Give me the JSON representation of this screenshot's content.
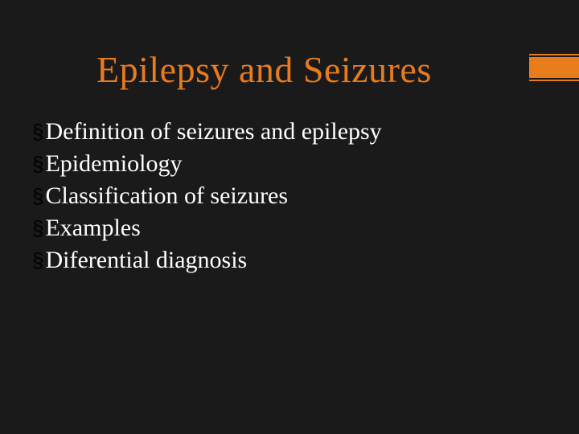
{
  "slide": {
    "title": "Epilepsy and Seizures",
    "title_color": "#e87b1c",
    "title_fontsize": 46,
    "background_color": "#1a1a1a",
    "accent_bar": {
      "color": "#e87b1c",
      "width": 62,
      "height": 34
    },
    "bullets": {
      "marker": "§",
      "marker_color": "#000000",
      "text_color": "#ffffff",
      "text_fontsize": 30,
      "items": [
        "Definition of seizures and epilepsy",
        "Epidemiology",
        "Classification of seizures",
        "Examples",
        "Diferential diagnosis"
      ]
    }
  }
}
